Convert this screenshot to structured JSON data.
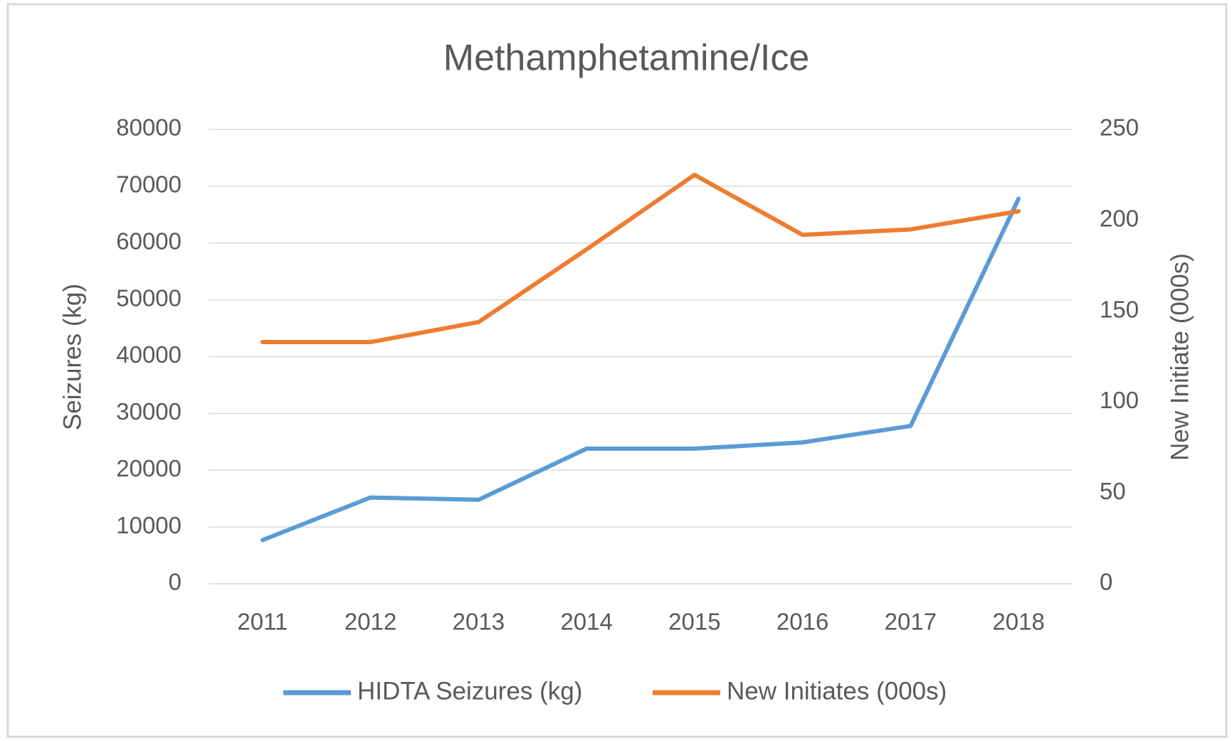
{
  "chart_data": {
    "type": "line",
    "title": "Methamphetamine/Ice",
    "y_label": "Seizures (kg)",
    "y2_label": "New Initiate (000s)",
    "categories": [
      "2011",
      "2012",
      "2013",
      "2014",
      "2015",
      "2016",
      "2017",
      "2018"
    ],
    "series": [
      {
        "name": "HIDTA Seizures (kg)",
        "color": "#5b9bd5",
        "values": [
          7700,
          15200,
          14800,
          23800,
          23800,
          24900,
          27800,
          67800
        ]
      },
      {
        "name": "New Initiates (000s)",
        "color": "#ed7d31",
        "axis": "y2",
        "values": [
          133,
          133,
          144,
          184,
          225,
          192,
          195,
          205
        ]
      }
    ],
    "ylim": [
      0,
      80000
    ],
    "yticks": [
      0,
      10000,
      20000,
      30000,
      40000,
      50000,
      60000,
      70000,
      80000
    ],
    "y2lim": [
      0,
      250
    ],
    "y2ticks": [
      0,
      50,
      100,
      150,
      200,
      250
    ],
    "grid": true,
    "legend": "bottom"
  }
}
